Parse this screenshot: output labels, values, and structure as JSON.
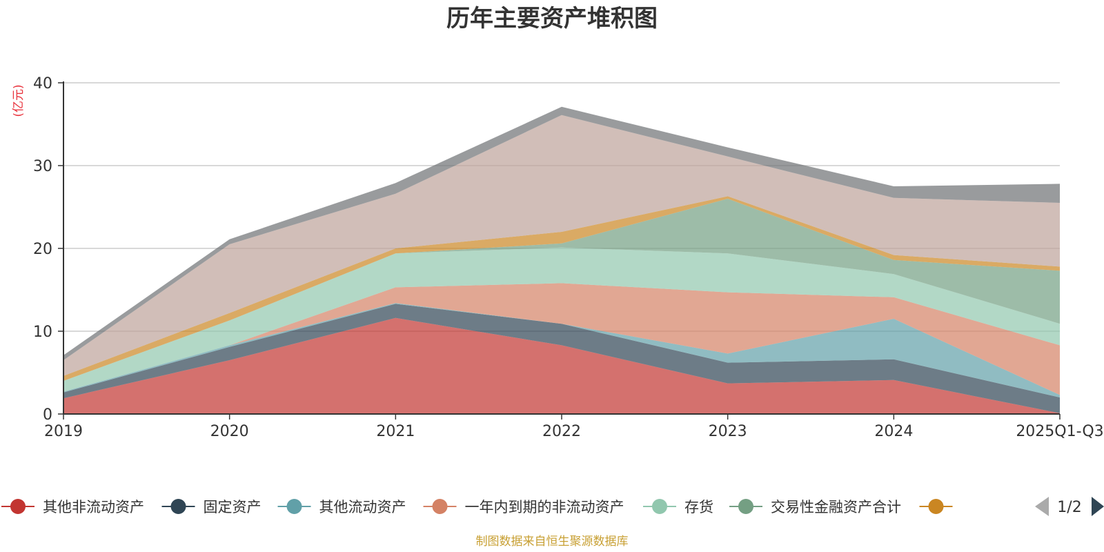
{
  "chart_data": {
    "type": "area",
    "title": "历年主要资产堆积图",
    "ylabel": "(亿元)",
    "xlabel": "",
    "ylim": [
      0,
      40
    ],
    "yticks": [
      0,
      10,
      20,
      30,
      40
    ],
    "categories": [
      "2019",
      "2020",
      "2021",
      "2022",
      "2023",
      "2024",
      "2025Q1-Q3"
    ],
    "stacked": true,
    "grid": true,
    "series": [
      {
        "name": "其他非流动资产",
        "color": "#c23531",
        "values": [
          1.9,
          6.5,
          11.6,
          8.3,
          3.7,
          4.1,
          0.1
        ]
      },
      {
        "name": "固定资产",
        "color": "#2f4554",
        "values": [
          0.7,
          1.6,
          1.7,
          2.6,
          2.5,
          2.5,
          1.9
        ]
      },
      {
        "name": "其他流动资产",
        "color": "#61a0a8",
        "values": [
          0.1,
          0.2,
          0.1,
          0.0,
          1.1,
          4.9,
          0.3
        ]
      },
      {
        "name": "一年内到期的非流动资产",
        "color": "#d48265",
        "values": [
          0.0,
          0.0,
          1.9,
          4.9,
          7.4,
          2.6,
          6.0
        ]
      },
      {
        "name": "存货",
        "color": "#91c7ae",
        "values": [
          1.3,
          3.0,
          4.1,
          4.3,
          4.7,
          2.8,
          2.6
        ]
      },
      {
        "name": "交易性金融资产合计",
        "color": "#749f83",
        "values": [
          0.0,
          0.0,
          0.0,
          0.5,
          6.6,
          1.7,
          6.4
        ]
      },
      {
        "name": "",
        "color": "#ca8622",
        "values": [
          0.6,
          0.9,
          0.6,
          1.4,
          0.3,
          0.6,
          0.5
        ]
      },
      {
        "name": "",
        "color": "#bda29a",
        "values": [
          1.9,
          8.3,
          6.6,
          14.1,
          4.8,
          6.9,
          7.7
        ]
      },
      {
        "name": "",
        "color": "#6e7074",
        "values": [
          0.6,
          0.6,
          1.3,
          1.0,
          1.1,
          1.4,
          2.3
        ]
      }
    ]
  },
  "legend": {
    "visible_series": 7,
    "pager": "1/2"
  },
  "source_note": "制图数据来自恒生聚源数据库"
}
